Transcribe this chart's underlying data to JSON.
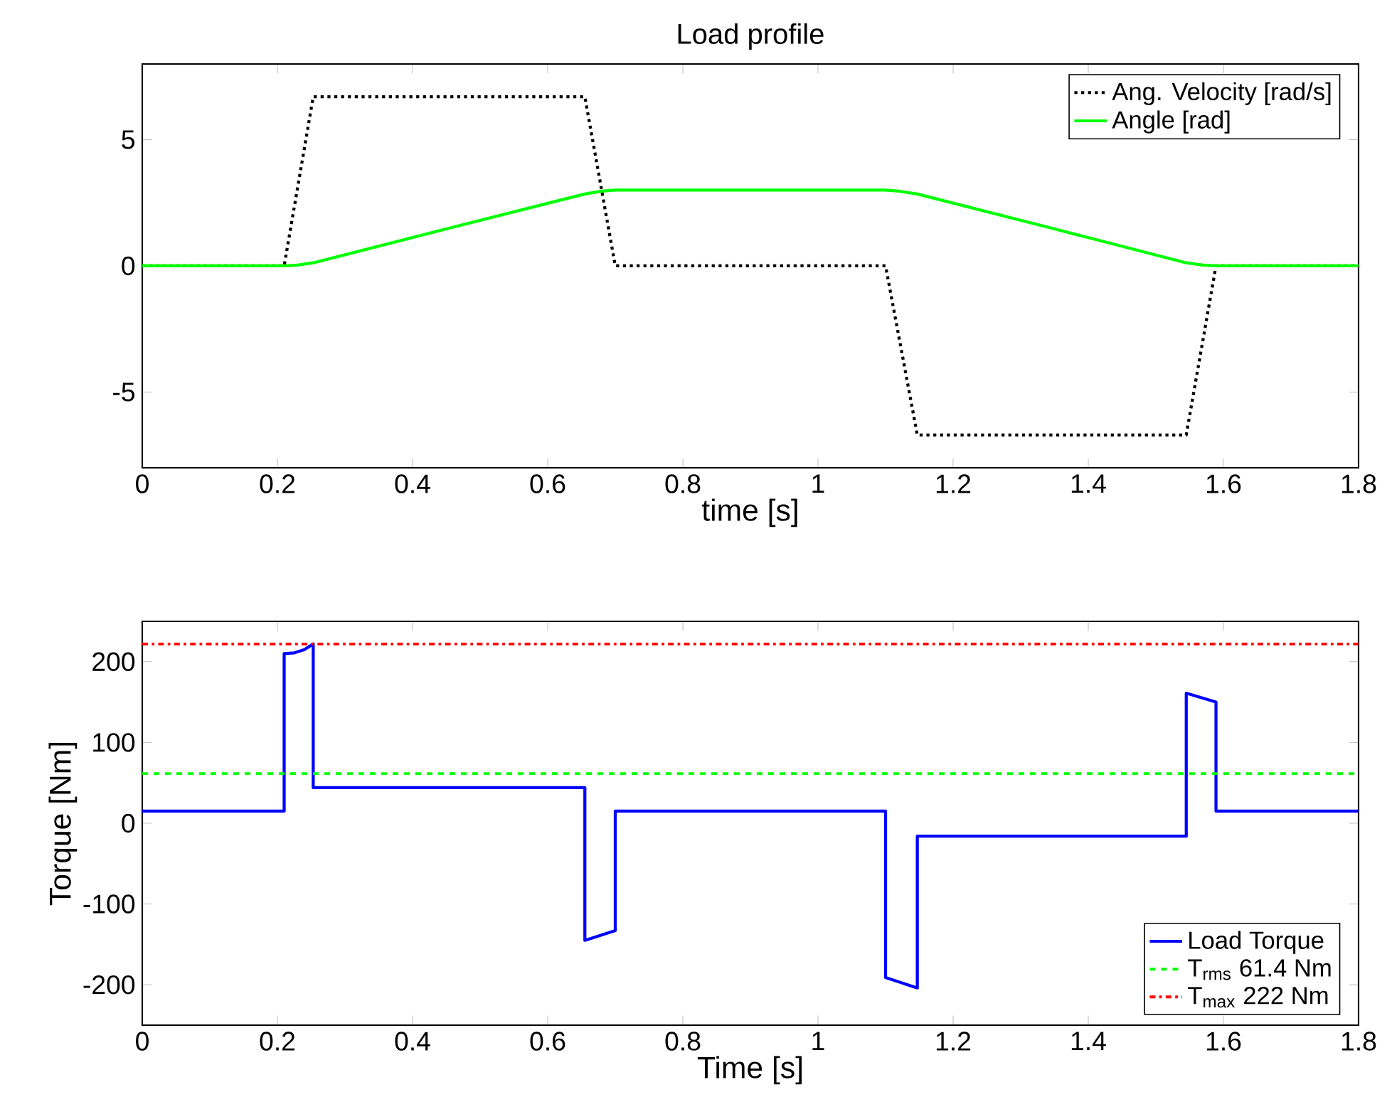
{
  "chart_data": [
    {
      "type": "line",
      "title": "Load profile",
      "xlabel": "time [s]",
      "xlim": [
        0,
        1.8
      ],
      "xticks": [
        0,
        0.2,
        0.4,
        0.6,
        0.8,
        1,
        1.2,
        1.4,
        1.6,
        1.8
      ],
      "ylim": [
        -8,
        8
      ],
      "yticks": [
        -5,
        0,
        5
      ],
      "legend": "top right",
      "grid": false,
      "marker": "none",
      "series": [
        {
          "name": "Ang. Velocity [rad/s]",
          "color": "#000000",
          "line_style": "dotted",
          "x": [
            0,
            0.21,
            0.253,
            0.655,
            0.7,
            1.1,
            1.147,
            1.545,
            1.589,
            1.8
          ],
          "values": [
            0,
            0,
            6.7,
            6.7,
            0,
            0,
            -6.7,
            -6.7,
            0,
            0
          ]
        },
        {
          "name": "Angle [rad]",
          "color": "#00ff00",
          "line_style": "solid",
          "x": [
            0,
            0.21,
            0.23,
            0.253,
            0.455,
            0.655,
            0.68,
            0.7,
            1.1,
            1.12,
            1.147,
            1.345,
            1.545,
            1.57,
            1.589,
            1.8
          ],
          "values": [
            0,
            0,
            0.03,
            0.12,
            1.5,
            2.85,
            2.96,
            3.0,
            3.0,
            2.96,
            2.85,
            1.5,
            0.12,
            0.03,
            0,
            0
          ]
        }
      ]
    },
    {
      "type": "line",
      "xlabel": "Time [s]",
      "ylabel": "Torque [Nm]",
      "xlim": [
        0,
        1.8
      ],
      "xticks": [
        0,
        0.2,
        0.4,
        0.6,
        0.8,
        1,
        1.2,
        1.4,
        1.6,
        1.8
      ],
      "ylim": [
        -250,
        250
      ],
      "yticks": [
        -200,
        -100,
        0,
        100,
        200
      ],
      "legend": "bottom right",
      "grid": false,
      "marker": "none",
      "series": [
        {
          "name": "Load Torque",
          "color": "#0000ff",
          "line_style": "solid",
          "x": [
            0,
            0.21,
            0.21,
            0.225,
            0.24,
            0.253,
            0.253,
            0.655,
            0.655,
            0.7,
            0.7,
            1.1,
            1.1,
            1.147,
            1.147,
            1.545,
            1.545,
            1.589,
            1.589,
            1.8
          ],
          "values": [
            15,
            15,
            210,
            211,
            215,
            222,
            44,
            44,
            -145,
            -133,
            15,
            15,
            -191,
            -204,
            -16,
            -16,
            161,
            150,
            15,
            15
          ]
        }
      ],
      "ref_lines": [
        {
          "axis": "y",
          "value": 61.4,
          "label": "T$_{rms}$ 61.4 Nm",
          "color": "#00ff00",
          "line_style": "dashed"
        },
        {
          "axis": "y",
          "value": 222,
          "label": "T$_{max}$ 222 Nm",
          "color": "#ff0000",
          "line_style": "dashdot"
        }
      ]
    }
  ]
}
